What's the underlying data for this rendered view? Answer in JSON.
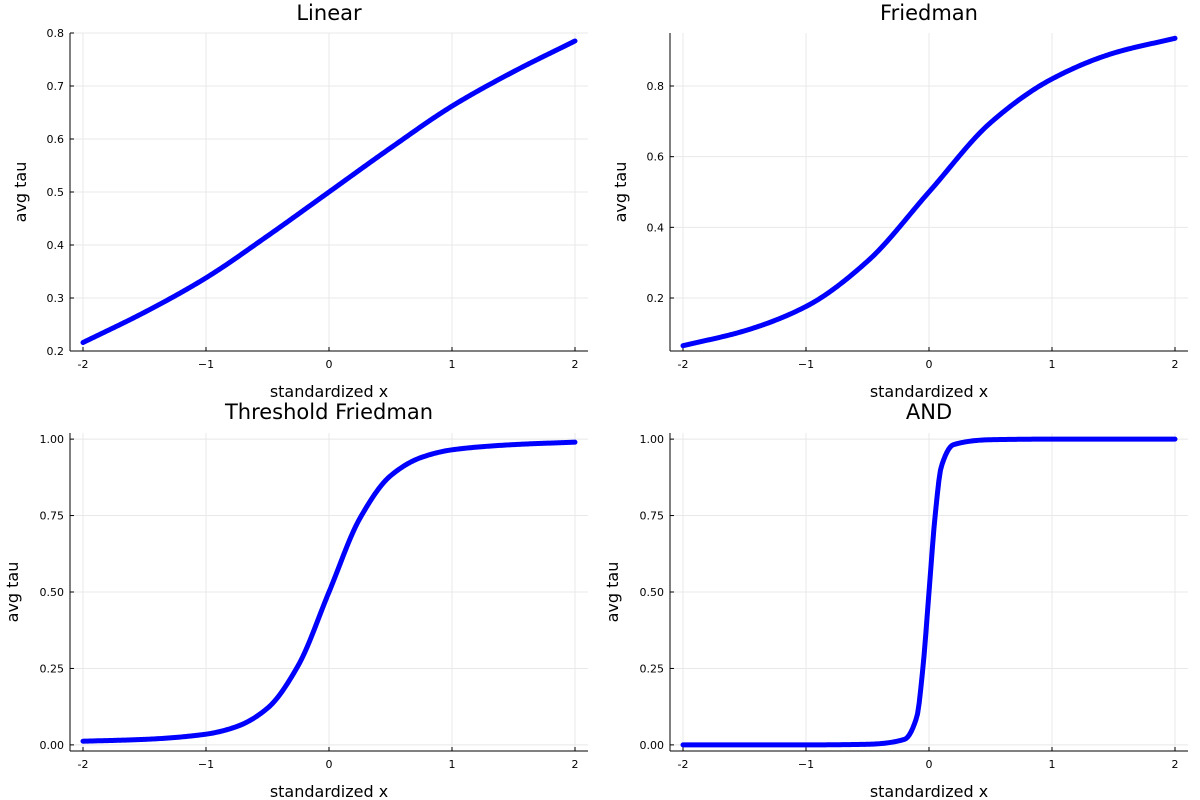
{
  "chart_data": [
    {
      "type": "line",
      "title": "Linear",
      "xlabel": "standardized x",
      "ylabel": "avg tau",
      "xlim": [
        -2,
        2
      ],
      "ylim": [
        0.2,
        0.8
      ],
      "xticks": [
        -2,
        -1,
        0,
        1,
        2
      ],
      "xtick_labels": [
        "-2",
        "−1",
        "0",
        "1",
        "2"
      ],
      "yticks": [
        0.2,
        0.3,
        0.4,
        0.5,
        0.6,
        0.7,
        0.8
      ],
      "ytick_labels": [
        "0.2",
        "0.3",
        "0.4",
        "0.5",
        "0.6",
        "0.7",
        "0.8"
      ],
      "grid": true,
      "legend": false,
      "series": [
        {
          "color": "#0000ff",
          "x": [
            -2.0,
            -1.5,
            -1.0,
            -0.5,
            0.0,
            0.5,
            1.0,
            1.5,
            2.0
          ],
          "y": [
            0.216,
            0.273,
            0.338,
            0.417,
            0.5,
            0.583,
            0.662,
            0.727,
            0.785
          ]
        }
      ]
    },
    {
      "type": "line",
      "title": "Friedman",
      "xlabel": "standardized x",
      "ylabel": "avg tau",
      "xlim": [
        -2,
        2
      ],
      "ylim": [
        0.05,
        0.95
      ],
      "xticks": [
        -2,
        -1,
        0,
        1,
        2
      ],
      "xtick_labels": [
        "-2",
        "−1",
        "0",
        "1",
        "2"
      ],
      "yticks": [
        0.2,
        0.4,
        0.6,
        0.8
      ],
      "ytick_labels": [
        "0.2",
        "0.4",
        "0.6",
        "0.8"
      ],
      "grid": true,
      "legend": false,
      "series": [
        {
          "color": "#0000ff",
          "x": [
            -2.0,
            -1.5,
            -1.0,
            -0.5,
            0.0,
            0.5,
            1.0,
            1.5,
            2.0
          ],
          "y": [
            0.065,
            0.107,
            0.176,
            0.304,
            0.5,
            0.696,
            0.82,
            0.893,
            0.935
          ]
        }
      ]
    },
    {
      "type": "line",
      "title": "Threshold Friedman",
      "xlabel": "standardized x",
      "ylabel": "avg tau",
      "xlim": [
        -2,
        2
      ],
      "ylim": [
        -0.02,
        1.02
      ],
      "xticks": [
        -2,
        -1,
        0,
        1,
        2
      ],
      "xtick_labels": [
        "-2",
        "−1",
        "0",
        "1",
        "2"
      ],
      "yticks": [
        0.0,
        0.25,
        0.5,
        0.75,
        1.0
      ],
      "ytick_labels": [
        "0.00",
        "0.25",
        "0.50",
        "0.75",
        "1.00"
      ],
      "grid": true,
      "legend": false,
      "series": [
        {
          "color": "#0000ff",
          "x": [
            -2.0,
            -1.5,
            -1.0,
            -0.75,
            -0.5,
            -0.25,
            0.0,
            0.25,
            0.5,
            0.75,
            1.0,
            1.5,
            2.0
          ],
          "y": [
            0.012,
            0.018,
            0.035,
            0.06,
            0.12,
            0.26,
            0.5,
            0.74,
            0.88,
            0.94,
            0.965,
            0.982,
            0.99
          ]
        }
      ]
    },
    {
      "type": "line",
      "title": "AND",
      "xlabel": "standardized x",
      "ylabel": "avg tau",
      "xlim": [
        -2,
        2
      ],
      "ylim": [
        -0.02,
        1.02
      ],
      "xticks": [
        -2,
        -1,
        0,
        1,
        2
      ],
      "xtick_labels": [
        "-2",
        "−1",
        "0",
        "1",
        "2"
      ],
      "yticks": [
        0.0,
        0.25,
        0.5,
        0.75,
        1.0
      ],
      "ytick_labels": [
        "0.00",
        "0.25",
        "0.50",
        "0.75",
        "1.00"
      ],
      "grid": true,
      "legend": false,
      "series": [
        {
          "color": "#0000ff",
          "x": [
            -2.0,
            -1.0,
            -0.5,
            -0.2,
            -0.1,
            -0.05,
            0.0,
            0.05,
            0.1,
            0.2,
            0.5,
            1.0,
            2.0
          ],
          "y": [
            0.0,
            0.0,
            0.002,
            0.018,
            0.09,
            0.25,
            0.5,
            0.75,
            0.91,
            0.982,
            0.998,
            1.0,
            1.0
          ]
        }
      ]
    }
  ]
}
